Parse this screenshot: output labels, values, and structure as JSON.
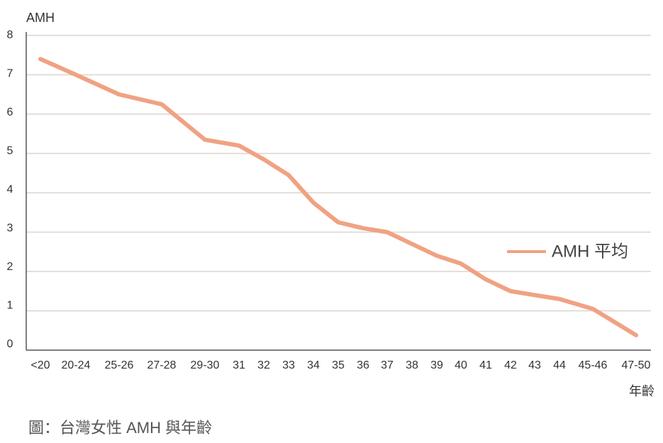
{
  "chart_data": {
    "type": "line",
    "y_label": "AMH",
    "x_label": "年齡",
    "caption": "圖：台灣女性 AMH 與年齡",
    "categories": [
      "<20",
      "20-24",
      "25-26",
      "27-28",
      "29-30",
      "31",
      "32",
      "33",
      "34",
      "35",
      "36",
      "37",
      "38",
      "39",
      "40",
      "41",
      "42",
      "43",
      "44",
      "45-46",
      "47-50"
    ],
    "series": [
      {
        "name": "AMH 平均",
        "color": "#f0a283",
        "values": [
          7.4,
          7.0,
          6.5,
          6.25,
          5.35,
          5.2,
          4.85,
          4.45,
          3.75,
          3.25,
          3.1,
          3.0,
          2.7,
          2.4,
          2.2,
          1.8,
          1.5,
          1.4,
          1.3,
          1.05,
          0.38
        ]
      }
    ],
    "ylim": [
      0,
      8
    ],
    "yticks": [
      0,
      1,
      2,
      3,
      4,
      5,
      6,
      7,
      8
    ],
    "grid": true
  }
}
